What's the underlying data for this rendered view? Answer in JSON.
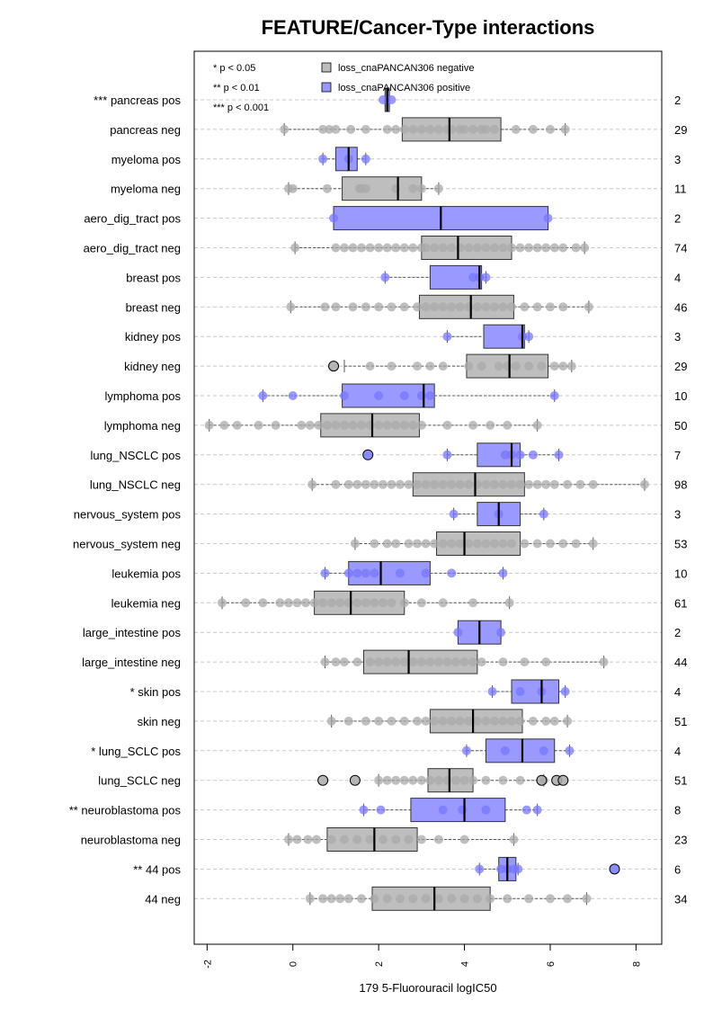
{
  "chart_data": {
    "type": "boxplot",
    "title": "FEATURE/Cancer-Type interactions",
    "xlabel": "179 5-Fluorouracil logIC50",
    "xlim": [
      -2.3,
      8.6
    ],
    "x_ticks": [
      "-2",
      "0",
      "2",
      "4",
      "6",
      "8"
    ],
    "grid": "horizontal dashed",
    "significance_legend": [
      "* p < 0.05",
      "** p < 0.01",
      "*** p < 0.001"
    ],
    "series_legend": [
      {
        "name": "loss_cnaPANCAN306 negative",
        "color": "#bebebe"
      },
      {
        "name": "loss_cnaPANCAN306 positive",
        "color": "#9999ff"
      }
    ],
    "colors": {
      "negative_box": "#bebebe",
      "positive_box": "#9999ff",
      "negative_point": "#a9a9a9",
      "positive_point": "#7777ff"
    },
    "rows": [
      {
        "label": "*** pancreas pos",
        "n": "2",
        "group": "pos",
        "q1": 2.15,
        "median": 2.2,
        "q3": 2.25,
        "wlo": 2.15,
        "whi": 2.25,
        "points": [
          2.1,
          2.3
        ],
        "outliers": []
      },
      {
        "label": "pancreas neg",
        "n": "29",
        "group": "neg",
        "q1": 2.55,
        "median": 3.65,
        "q3": 4.85,
        "wlo": -0.2,
        "whi": 6.35,
        "points": [
          -0.2,
          0.7,
          0.85,
          1.0,
          1.35,
          1.7,
          2.2,
          2.4,
          2.6,
          2.8,
          3.0,
          3.2,
          3.4,
          3.6,
          3.7,
          3.9,
          4.0,
          4.2,
          4.4,
          4.5,
          4.7,
          5.2,
          5.6,
          6.0,
          6.35
        ],
        "outliers": []
      },
      {
        "label": "myeloma pos",
        "n": "3",
        "group": "pos",
        "q1": 1.0,
        "median": 1.3,
        "q3": 1.5,
        "wlo": 0.7,
        "whi": 1.7,
        "points": [
          0.7,
          1.3,
          1.7
        ],
        "outliers": []
      },
      {
        "label": "myeloma neg",
        "n": "11",
        "group": "neg",
        "q1": 1.15,
        "median": 2.45,
        "q3": 3.0,
        "wlo": -0.1,
        "whi": 3.4,
        "points": [
          -0.1,
          0.0,
          0.8,
          1.55,
          1.6,
          1.7,
          2.4,
          2.8,
          3.0,
          3.4
        ],
        "outliers": []
      },
      {
        "label": "aero_dig_tract pos",
        "n": "2",
        "group": "pos",
        "q1": 0.95,
        "median": 3.45,
        "q3": 5.95,
        "wlo": 0.95,
        "whi": 5.95,
        "points": [
          0.95,
          5.95
        ],
        "outliers": []
      },
      {
        "label": "aero_dig_tract neg",
        "n": "74",
        "group": "neg",
        "q1": 3.0,
        "median": 3.85,
        "q3": 5.1,
        "wlo": 0.05,
        "whi": 6.8,
        "points": [
          0.05,
          1.0,
          1.2,
          1.4,
          1.6,
          1.8,
          2.0,
          2.2,
          2.4,
          2.6,
          2.8,
          3.0,
          3.1,
          3.3,
          3.5,
          3.7,
          3.9,
          4.1,
          4.3,
          4.5,
          4.7,
          4.9,
          5.1,
          5.3,
          5.5,
          5.7,
          5.9,
          6.1,
          6.3,
          6.6,
          6.8
        ],
        "outliers": []
      },
      {
        "label": "breast pos",
        "n": "4",
        "group": "pos",
        "q1": 3.2,
        "median": 4.35,
        "q3": 4.4,
        "wlo": 2.15,
        "whi": 4.5,
        "points": [
          2.15,
          4.2,
          4.35,
          4.5
        ],
        "outliers": []
      },
      {
        "label": "breast neg",
        "n": "46",
        "group": "neg",
        "q1": 2.95,
        "median": 4.15,
        "q3": 5.15,
        "wlo": -0.05,
        "whi": 6.9,
        "points": [
          -0.05,
          0.75,
          1.0,
          1.4,
          1.7,
          2.0,
          2.3,
          2.6,
          2.9,
          3.1,
          3.3,
          3.5,
          3.7,
          3.9,
          4.1,
          4.3,
          4.5,
          4.7,
          4.9,
          5.1,
          5.4,
          5.7,
          6.0,
          6.3,
          6.9
        ],
        "outliers": []
      },
      {
        "label": "kidney pos",
        "n": "3",
        "group": "pos",
        "q1": 4.45,
        "median": 5.35,
        "q3": 5.4,
        "wlo": 3.6,
        "whi": 5.5,
        "points": [
          3.6,
          5.35,
          5.5
        ],
        "outliers": []
      },
      {
        "label": "kidney neg",
        "n": "29",
        "group": "neg",
        "q1": 4.05,
        "median": 5.05,
        "q3": 5.95,
        "wlo": 1.2,
        "whi": 6.5,
        "points": [
          1.8,
          2.3,
          2.9,
          3.2,
          3.5,
          4.1,
          4.4,
          4.8,
          5.0,
          5.2,
          5.5,
          5.8,
          6.1,
          6.3,
          6.5
        ],
        "outliers": [
          0.95
        ]
      },
      {
        "label": "lymphoma pos",
        "n": "10",
        "group": "pos",
        "q1": 1.15,
        "median": 3.05,
        "q3": 3.3,
        "wlo": -0.7,
        "whi": 6.1,
        "points": [
          -0.7,
          0.0,
          1.2,
          2.0,
          2.6,
          3.0,
          3.2,
          6.1
        ],
        "outliers": []
      },
      {
        "label": "lymphoma neg",
        "n": "50",
        "group": "neg",
        "q1": 0.65,
        "median": 1.85,
        "q3": 2.95,
        "wlo": -1.95,
        "whi": 5.7,
        "points": [
          -1.95,
          -1.6,
          -1.3,
          -0.8,
          -0.4,
          0.2,
          0.4,
          0.6,
          0.8,
          1.0,
          1.2,
          1.4,
          1.6,
          1.8,
          2.0,
          2.2,
          2.4,
          2.6,
          2.8,
          3.0,
          3.6,
          4.2,
          4.6,
          5.0,
          5.7
        ],
        "outliers": []
      },
      {
        "label": "lung_NSCLC pos",
        "n": "7",
        "group": "pos",
        "q1": 4.3,
        "median": 5.1,
        "q3": 5.3,
        "wlo": 3.6,
        "whi": 6.2,
        "points": [
          3.6,
          4.95,
          5.1,
          5.3,
          5.6,
          6.2
        ],
        "outliers": [
          1.75
        ]
      },
      {
        "label": "lung_NSCLC neg",
        "n": "98",
        "group": "neg",
        "q1": 2.8,
        "median": 4.25,
        "q3": 5.4,
        "wlo": 0.45,
        "whi": 8.2,
        "points": [
          0.45,
          1.0,
          1.3,
          1.5,
          1.7,
          1.9,
          2.1,
          2.3,
          2.5,
          2.7,
          2.9,
          3.1,
          3.3,
          3.5,
          3.7,
          3.9,
          4.1,
          4.3,
          4.5,
          4.7,
          4.9,
          5.1,
          5.3,
          5.5,
          5.7,
          5.9,
          6.1,
          6.4,
          6.7,
          7.0,
          8.2
        ],
        "outliers": []
      },
      {
        "label": "nervous_system pos",
        "n": "3",
        "group": "pos",
        "q1": 4.3,
        "median": 4.8,
        "q3": 5.3,
        "wlo": 3.75,
        "whi": 5.85,
        "points": [
          3.75,
          4.8,
          5.85
        ],
        "outliers": []
      },
      {
        "label": "nervous_system neg",
        "n": "53",
        "group": "neg",
        "q1": 3.35,
        "median": 4.0,
        "q3": 5.3,
        "wlo": 1.45,
        "whi": 7.0,
        "points": [
          1.45,
          1.9,
          2.2,
          2.4,
          2.7,
          2.9,
          3.1,
          3.3,
          3.5,
          3.7,
          3.9,
          4.1,
          4.3,
          4.5,
          4.7,
          4.9,
          5.1,
          5.4,
          5.7,
          6.0,
          6.3,
          6.6,
          7.0
        ],
        "outliers": []
      },
      {
        "label": "leukemia pos",
        "n": "10",
        "group": "pos",
        "q1": 1.3,
        "median": 2.05,
        "q3": 3.2,
        "wlo": 0.75,
        "whi": 4.9,
        "points": [
          0.75,
          1.3,
          1.5,
          1.7,
          1.9,
          2.5,
          3.1,
          3.7,
          4.9
        ],
        "outliers": []
      },
      {
        "label": "leukemia neg",
        "n": "61",
        "group": "neg",
        "q1": 0.5,
        "median": 1.35,
        "q3": 2.6,
        "wlo": -1.65,
        "whi": 5.05,
        "points": [
          -1.65,
          -1.1,
          -0.7,
          -0.3,
          -0.1,
          0.1,
          0.3,
          0.5,
          0.7,
          0.9,
          1.1,
          1.3,
          1.5,
          1.7,
          1.9,
          2.1,
          2.3,
          2.6,
          3.0,
          3.5,
          4.2,
          5.05
        ],
        "outliers": []
      },
      {
        "label": "large_intestine pos",
        "n": "2",
        "group": "pos",
        "q1": 3.85,
        "median": 4.35,
        "q3": 4.85,
        "wlo": 3.85,
        "whi": 4.85,
        "points": [
          3.85,
          4.85
        ],
        "outliers": []
      },
      {
        "label": "large_intestine neg",
        "n": "44",
        "group": "neg",
        "q1": 1.65,
        "median": 2.7,
        "q3": 4.3,
        "wlo": 0.75,
        "whi": 7.25,
        "points": [
          0.75,
          1.0,
          1.2,
          1.5,
          1.8,
          2.0,
          2.2,
          2.4,
          2.6,
          2.8,
          3.0,
          3.2,
          3.4,
          3.6,
          3.8,
          4.0,
          4.2,
          4.4,
          4.9,
          5.4,
          5.9,
          7.25
        ],
        "outliers": []
      },
      {
        "label": "* skin pos",
        "n": "4",
        "group": "pos",
        "q1": 5.1,
        "median": 5.8,
        "q3": 6.2,
        "wlo": 4.65,
        "whi": 6.35,
        "points": [
          4.65,
          5.3,
          5.8,
          6.35
        ],
        "outliers": []
      },
      {
        "label": "skin neg",
        "n": "51",
        "group": "neg",
        "q1": 3.2,
        "median": 4.2,
        "q3": 5.35,
        "wlo": 0.9,
        "whi": 6.4,
        "points": [
          0.9,
          1.3,
          1.7,
          2.0,
          2.3,
          2.6,
          2.9,
          3.1,
          3.3,
          3.5,
          3.7,
          3.9,
          4.1,
          4.3,
          4.5,
          4.7,
          4.9,
          5.1,
          5.3,
          5.6,
          5.9,
          6.1,
          6.4
        ],
        "outliers": []
      },
      {
        "label": "* lung_SCLC pos",
        "n": "4",
        "group": "pos",
        "q1": 4.5,
        "median": 5.35,
        "q3": 6.1,
        "wlo": 4.05,
        "whi": 6.45,
        "points": [
          4.05,
          4.95,
          5.85,
          6.45
        ],
        "outliers": []
      },
      {
        "label": "lung_SCLC neg",
        "n": "51",
        "group": "neg",
        "q1": 3.15,
        "median": 3.65,
        "q3": 4.2,
        "wlo": 2.0,
        "whi": 5.85,
        "points": [
          2.0,
          2.2,
          2.4,
          2.6,
          2.8,
          3.0,
          3.2,
          3.4,
          3.6,
          3.8,
          4.0,
          4.2,
          4.5,
          4.9,
          5.3,
          5.85
        ],
        "outliers": [
          0.7,
          1.45,
          5.8,
          6.15,
          6.3
        ]
      },
      {
        "label": "** neuroblastoma pos",
        "n": "8",
        "group": "pos",
        "q1": 2.75,
        "median": 4.0,
        "q3": 4.95,
        "wlo": 1.65,
        "whi": 5.7,
        "points": [
          1.65,
          2.05,
          3.5,
          3.95,
          4.5,
          5.45,
          5.7
        ],
        "outliers": []
      },
      {
        "label": "neuroblastoma neg",
        "n": "23",
        "group": "neg",
        "q1": 0.8,
        "median": 1.9,
        "q3": 2.9,
        "wlo": -0.1,
        "whi": 5.15,
        "points": [
          -0.1,
          0.1,
          0.35,
          0.55,
          0.9,
          1.2,
          1.5,
          1.8,
          2.1,
          2.4,
          2.7,
          3.0,
          3.4,
          4.0,
          5.15
        ],
        "outliers": []
      },
      {
        "label": "** 44 pos",
        "n": "6",
        "group": "pos",
        "q1": 4.8,
        "median": 5.0,
        "q3": 5.2,
        "wlo": 4.35,
        "whi": 5.25,
        "points": [
          4.35,
          4.85,
          5.0,
          5.15,
          5.25
        ],
        "outliers": [
          7.5
        ]
      },
      {
        "label": "44 neg",
        "n": "34",
        "group": "neg",
        "q1": 1.85,
        "median": 3.3,
        "q3": 4.6,
        "wlo": 0.4,
        "whi": 6.85,
        "points": [
          0.4,
          0.7,
          0.9,
          1.1,
          1.3,
          1.6,
          1.9,
          2.2,
          2.5,
          2.8,
          3.1,
          3.4,
          3.7,
          4.0,
          4.3,
          4.6,
          5.0,
          5.5,
          6.0,
          6.4,
          6.85
        ],
        "outliers": []
      }
    ]
  }
}
